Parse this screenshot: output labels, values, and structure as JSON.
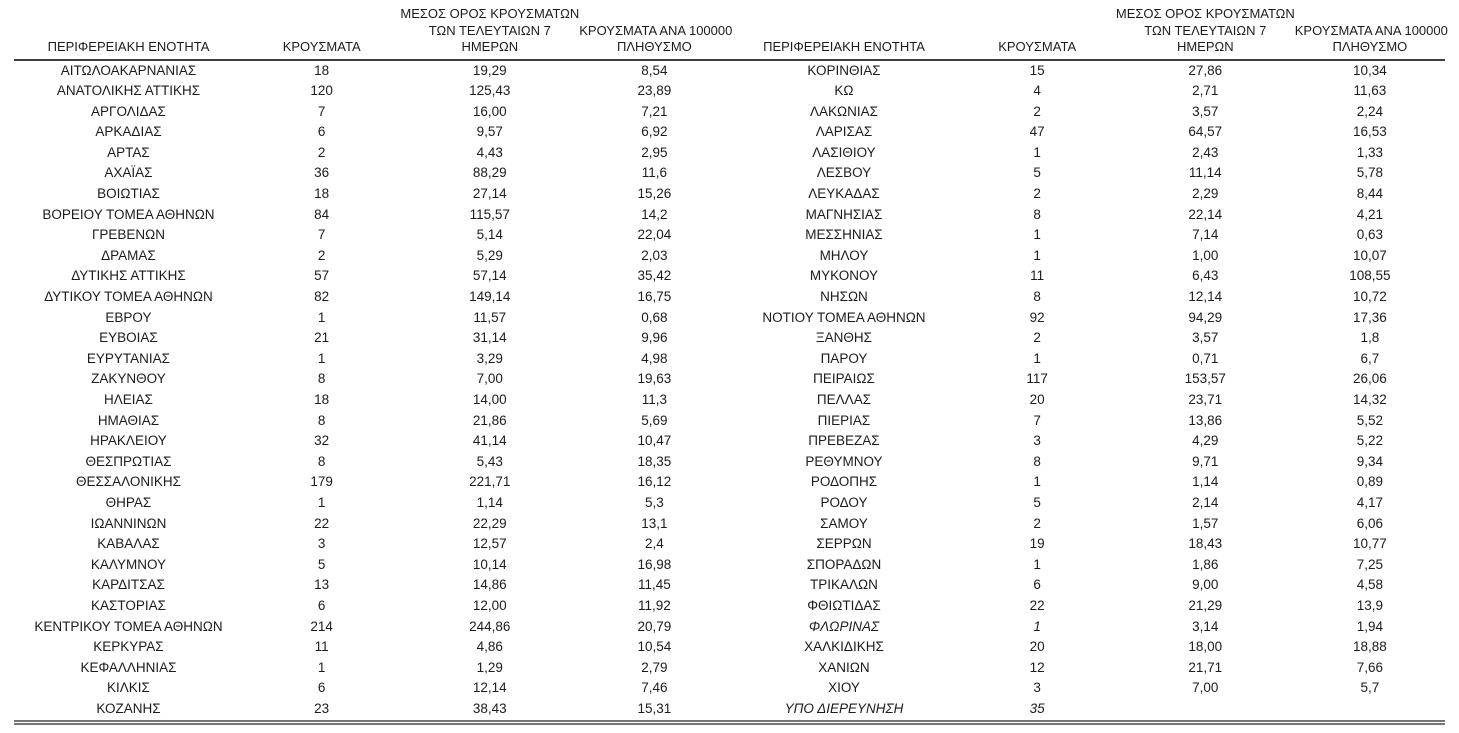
{
  "columns": {
    "region": "ΠΕΡΙΦΕΡΕΙΑΚΗ ΕΝΟΤΗΤΑ",
    "cases": "ΚΡΟΥΣΜΑΤΑ",
    "avg7_line1": "ΜΕΣΟΣ ΟΡΟΣ ΚΡΟΥΣΜΑΤΩΝ",
    "avg7_line2": "ΤΩΝ ΤΕΛΕΥΤΑΙΩΝ 7",
    "avg7_line3": "ΗΜΕΡΩΝ",
    "per100k_line1": "ΚΡΟΥΣΜΑΤΑ ΑΝΑ 100000",
    "per100k_line2": "ΠΛΗΘΥΣΜΟ"
  },
  "styles": {
    "text_color": "#1c1c1c",
    "header_rule_color": "#3d3d3d",
    "bottom_rule_color": "#757575",
    "background": "#ffffff"
  },
  "tables": [
    {
      "rows": [
        {
          "name": "ΑΙΤΩΛΟΑΚΑΡΝΑΝΙΑΣ",
          "cases": "18",
          "avg7": "19,29",
          "per100k": "8,54"
        },
        {
          "name": "ΑΝΑΤΟΛΙΚΗΣ ΑΤΤΙΚΗΣ",
          "cases": "120",
          "avg7": "125,43",
          "per100k": "23,89"
        },
        {
          "name": "ΑΡΓΟΛΙΔΑΣ",
          "cases": "7",
          "avg7": "16,00",
          "per100k": "7,21"
        },
        {
          "name": "ΑΡΚΑΔΙΑΣ",
          "cases": "6",
          "avg7": "9,57",
          "per100k": "6,92"
        },
        {
          "name": "ΑΡΤΑΣ",
          "cases": "2",
          "avg7": "4,43",
          "per100k": "2,95"
        },
        {
          "name": "ΑΧΑΪΑΣ",
          "cases": "36",
          "avg7": "88,29",
          "per100k": "11,6"
        },
        {
          "name": "ΒΟΙΩΤΙΑΣ",
          "cases": "18",
          "avg7": "27,14",
          "per100k": "15,26"
        },
        {
          "name": "ΒΟΡΕΙΟΥ ΤΟΜΕΑ ΑΘΗΝΩΝ",
          "cases": "84",
          "avg7": "115,57",
          "per100k": "14,2"
        },
        {
          "name": "ΓΡΕΒΕΝΩΝ",
          "cases": "7",
          "avg7": "5,14",
          "per100k": "22,04"
        },
        {
          "name": "ΔΡΑΜΑΣ",
          "cases": "2",
          "avg7": "5,29",
          "per100k": "2,03"
        },
        {
          "name": "ΔΥΤΙΚΗΣ ΑΤΤΙΚΗΣ",
          "cases": "57",
          "avg7": "57,14",
          "per100k": "35,42"
        },
        {
          "name": "ΔΥΤΙΚΟΥ ΤΟΜΕΑ ΑΘΗΝΩΝ",
          "cases": "82",
          "avg7": "149,14",
          "per100k": "16,75"
        },
        {
          "name": "ΕΒΡΟΥ",
          "cases": "1",
          "avg7": "11,57",
          "per100k": "0,68"
        },
        {
          "name": "ΕΥΒΟΙΑΣ",
          "cases": "21",
          "avg7": "31,14",
          "per100k": "9,96"
        },
        {
          "name": "ΕΥΡΥΤΑΝΙΑΣ",
          "cases": "1",
          "avg7": "3,29",
          "per100k": "4,98"
        },
        {
          "name": "ΖΑΚΥΝΘΟΥ",
          "cases": "8",
          "avg7": "7,00",
          "per100k": "19,63"
        },
        {
          "name": "ΗΛΕΙΑΣ",
          "cases": "18",
          "avg7": "14,00",
          "per100k": "11,3"
        },
        {
          "name": "ΗΜΑΘΙΑΣ",
          "cases": "8",
          "avg7": "21,86",
          "per100k": "5,69"
        },
        {
          "name": "ΗΡΑΚΛΕΙΟΥ",
          "cases": "32",
          "avg7": "41,14",
          "per100k": "10,47"
        },
        {
          "name": "ΘΕΣΠΡΩΤΙΑΣ",
          "cases": "8",
          "avg7": "5,43",
          "per100k": "18,35"
        },
        {
          "name": "ΘΕΣΣΑΛΟΝΙΚΗΣ",
          "cases": "179",
          "avg7": "221,71",
          "per100k": "16,12"
        },
        {
          "name": "ΘΗΡΑΣ",
          "cases": "1",
          "avg7": "1,14",
          "per100k": "5,3"
        },
        {
          "name": "ΙΩΑΝΝΙΝΩΝ",
          "cases": "22",
          "avg7": "22,29",
          "per100k": "13,1"
        },
        {
          "name": "ΚΑΒΑΛΑΣ",
          "cases": "3",
          "avg7": "12,57",
          "per100k": "2,4"
        },
        {
          "name": "ΚΑΛΥΜΝΟΥ",
          "cases": "5",
          "avg7": "10,14",
          "per100k": "16,98"
        },
        {
          "name": "ΚΑΡΔΙΤΣΑΣ",
          "cases": "13",
          "avg7": "14,86",
          "per100k": "11,45"
        },
        {
          "name": "ΚΑΣΤΟΡΙΑΣ",
          "cases": "6",
          "avg7": "12,00",
          "per100k": "11,92"
        },
        {
          "name": "ΚΕΝΤΡΙΚΟΥ ΤΟΜΕΑ ΑΘΗΝΩΝ",
          "cases": "214",
          "avg7": "244,86",
          "per100k": "20,79"
        },
        {
          "name": "ΚΕΡΚΥΡΑΣ",
          "cases": "11",
          "avg7": "4,86",
          "per100k": "10,54"
        },
        {
          "name": "ΚΕΦΑΛΛΗΝΙΑΣ",
          "cases": "1",
          "avg7": "1,29",
          "per100k": "2,79"
        },
        {
          "name": "ΚΙΛΚΙΣ",
          "cases": "6",
          "avg7": "12,14",
          "per100k": "7,46"
        },
        {
          "name": "ΚΟΖΑΝΗΣ",
          "cases": "23",
          "avg7": "38,43",
          "per100k": "15,31"
        }
      ]
    },
    {
      "rows": [
        {
          "name": "ΚΟΡΙΝΘΙΑΣ",
          "cases": "15",
          "avg7": "27,86",
          "per100k": "10,34"
        },
        {
          "name": "ΚΩ",
          "cases": "4",
          "avg7": "2,71",
          "per100k": "11,63"
        },
        {
          "name": "ΛΑΚΩΝΙΑΣ",
          "cases": "2",
          "avg7": "3,57",
          "per100k": "2,24"
        },
        {
          "name": "ΛΑΡΙΣΑΣ",
          "cases": "47",
          "avg7": "64,57",
          "per100k": "16,53"
        },
        {
          "name": "ΛΑΣΙΘΙΟΥ",
          "cases": "1",
          "avg7": "2,43",
          "per100k": "1,33"
        },
        {
          "name": "ΛΕΣΒΟΥ",
          "cases": "5",
          "avg7": "11,14",
          "per100k": "5,78"
        },
        {
          "name": "ΛΕΥΚΑΔΑΣ",
          "cases": "2",
          "avg7": "2,29",
          "per100k": "8,44"
        },
        {
          "name": "ΜΑΓΝΗΣΙΑΣ",
          "cases": "8",
          "avg7": "22,14",
          "per100k": "4,21"
        },
        {
          "name": "ΜΕΣΣΗΝΙΑΣ",
          "cases": "1",
          "avg7": "7,14",
          "per100k": "0,63"
        },
        {
          "name": "ΜΗΛΟΥ",
          "cases": "1",
          "avg7": "1,00",
          "per100k": "10,07"
        },
        {
          "name": "ΜΥΚΟΝΟΥ",
          "cases": "11",
          "avg7": "6,43",
          "per100k": "108,55"
        },
        {
          "name": "ΝΗΣΩΝ",
          "cases": "8",
          "avg7": "12,14",
          "per100k": "10,72"
        },
        {
          "name": "ΝΟΤΙΟΥ ΤΟΜΕΑ ΑΘΗΝΩΝ",
          "cases": "92",
          "avg7": "94,29",
          "per100k": "17,36"
        },
        {
          "name": "ΞΑΝΘΗΣ",
          "cases": "2",
          "avg7": "3,57",
          "per100k": "1,8"
        },
        {
          "name": "ΠΑΡΟΥ",
          "cases": "1",
          "avg7": "0,71",
          "per100k": "6,7"
        },
        {
          "name": "ΠΕΙΡΑΙΩΣ",
          "cases": "117",
          "avg7": "153,57",
          "per100k": "26,06"
        },
        {
          "name": "ΠΕΛΛΑΣ",
          "cases": "20",
          "avg7": "23,71",
          "per100k": "14,32"
        },
        {
          "name": "ΠΙΕΡΙΑΣ",
          "cases": "7",
          "avg7": "13,86",
          "per100k": "5,52"
        },
        {
          "name": "ΠΡΕΒΕΖΑΣ",
          "cases": "3",
          "avg7": "4,29",
          "per100k": "5,22"
        },
        {
          "name": "ΡΕΘΥΜΝΟΥ",
          "cases": "8",
          "avg7": "9,71",
          "per100k": "9,34"
        },
        {
          "name": "ΡΟΔΟΠΗΣ",
          "cases": "1",
          "avg7": "1,14",
          "per100k": "0,89"
        },
        {
          "name": "ΡΟΔΟΥ",
          "cases": "5",
          "avg7": "2,14",
          "per100k": "4,17"
        },
        {
          "name": "ΣΑΜΟΥ",
          "cases": "2",
          "avg7": "1,57",
          "per100k": "6,06"
        },
        {
          "name": "ΣΕΡΡΩΝ",
          "cases": "19",
          "avg7": "18,43",
          "per100k": "10,77"
        },
        {
          "name": "ΣΠΟΡΑΔΩΝ",
          "cases": "1",
          "avg7": "1,86",
          "per100k": "7,25"
        },
        {
          "name": "ΤΡΙΚΑΛΩΝ",
          "cases": "6",
          "avg7": "9,00",
          "per100k": "4,58"
        },
        {
          "name": "ΦΘΙΩΤΙΔΑΣ",
          "cases": "22",
          "avg7": "21,29",
          "per100k": "13,9"
        },
        {
          "name": "ΦΛΩΡΙΝΑΣ",
          "cases": "1",
          "avg7": "3,14",
          "per100k": "1,94",
          "italic": true
        },
        {
          "name": "ΧΑΛΚΙΔΙΚΗΣ",
          "cases": "20",
          "avg7": "18,00",
          "per100k": "18,88"
        },
        {
          "name": "ΧΑΝΙΩΝ",
          "cases": "12",
          "avg7": "21,71",
          "per100k": "7,66"
        },
        {
          "name": "ΧΙΟΥ",
          "cases": "3",
          "avg7": "7,00",
          "per100k": "5,7"
        },
        {
          "name": "ΥΠΟ ΔΙΕΡΕΥΝΗΣΗ",
          "cases": "35",
          "avg7": "",
          "per100k": "",
          "italic": true
        }
      ]
    }
  ]
}
